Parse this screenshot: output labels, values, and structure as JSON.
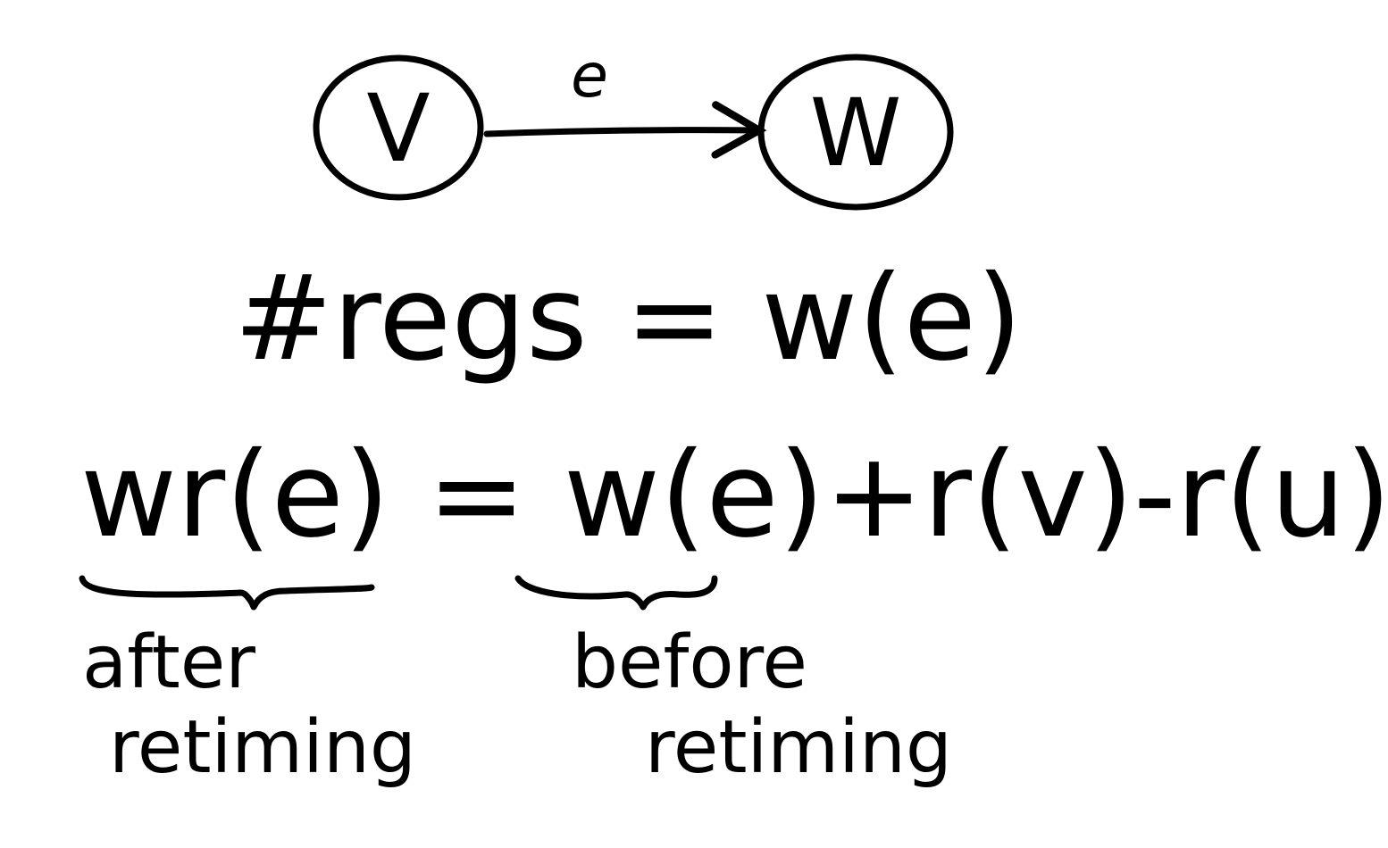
{
  "diagram": {
    "nodes": [
      {
        "id": "v",
        "label": "V"
      },
      {
        "id": "w",
        "label": "W"
      }
    ],
    "edge": {
      "from": "v",
      "to": "w",
      "label": "e"
    }
  },
  "equations": {
    "regs": "#regs = w(e)",
    "retiming": "wr(e) = w(e)+r(v)-r(u)"
  },
  "annotations": {
    "after": {
      "line1": "after",
      "line2": "retiming"
    },
    "before": {
      "line1": "before",
      "line2": "retiming"
    }
  },
  "colors": {
    "ink": "#000000",
    "background": "#ffffff"
  }
}
